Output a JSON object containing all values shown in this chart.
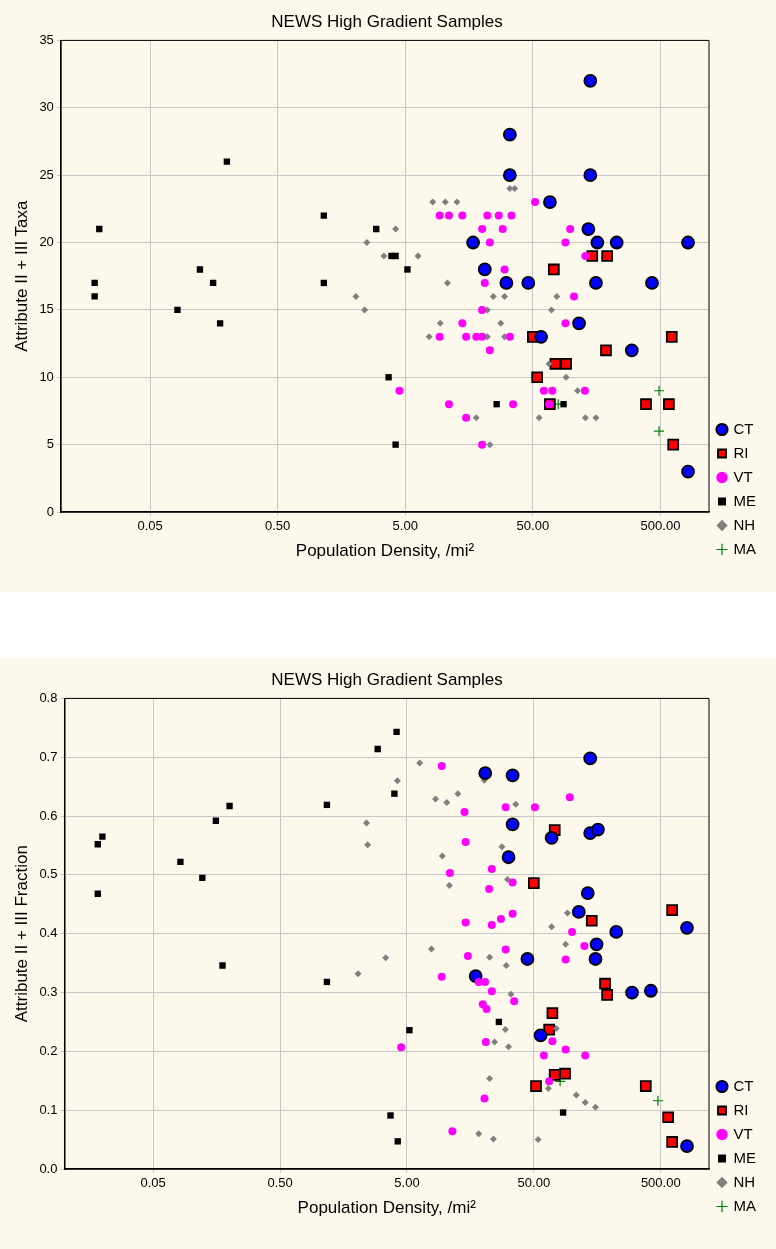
{
  "chart_data": [
    {
      "type": "scatter",
      "title": "NEWS High Gradient Samples",
      "xlabel": "Population Density, /mi²",
      "ylabel": "Attribute II + III Taxa",
      "log": "x",
      "grid": true,
      "legend": "bottom right",
      "xlim": [
        0.01,
        1200
      ],
      "xticks": [
        {
          "value": 0.05,
          "label": "0.05"
        },
        {
          "value": 0.5,
          "label": "0.50"
        },
        {
          "value": 5,
          "label": "5.00"
        },
        {
          "value": 50,
          "label": "50.00"
        },
        {
          "value": 500,
          "label": "500.00"
        }
      ],
      "ylim": [
        0,
        35
      ],
      "yticks": [
        0,
        5,
        10,
        15,
        20,
        25,
        30,
        35
      ],
      "series": [
        {
          "name": "CT",
          "color": "#0000ff",
          "marker": "circle",
          "x": [
            33,
            33,
            17,
            21,
            31,
            46,
            141,
            141,
            68,
            136,
            160,
            227,
            822,
            156,
            429,
            115,
            58,
            298,
            822
          ],
          "values": [
            28,
            25,
            20,
            18,
            17,
            17,
            32,
            25,
            23,
            21,
            20,
            20,
            20,
            17,
            17,
            14,
            13,
            12,
            3
          ]
        },
        {
          "name": "RI",
          "color": "#ff0000",
          "marker": "square",
          "x": [
            146,
            191,
            73,
            50,
            187,
            613,
            75,
            91,
            54,
            68,
            385,
            582,
            629
          ],
          "values": [
            19,
            19,
            18,
            13,
            12,
            13,
            11,
            11,
            10,
            8,
            8,
            8,
            5
          ]
        },
        {
          "name": "VT",
          "color": "#ff00ff",
          "marker": "circle",
          "x": [
            52,
            9.3,
            11,
            14,
            22,
            27,
            34,
            20,
            29,
            23,
            30,
            21,
            20,
            14,
            9.3,
            15,
            18,
            20,
            33,
            23,
            4.5,
            11,
            35,
            15,
            20,
            98,
            90,
            129,
            105,
            90,
            61,
            71,
            128,
            67
          ],
          "values": [
            23,
            22,
            22,
            22,
            22,
            22,
            22,
            21,
            21,
            20,
            18,
            17,
            15,
            14,
            13,
            13,
            13,
            13,
            13,
            12,
            9,
            8,
            8,
            7,
            5,
            21,
            20,
            19,
            16,
            14,
            9,
            9,
            9,
            8
          ]
        },
        {
          "name": "ME",
          "color": "#000000",
          "marker": "square",
          "x": [
            0.2,
            0.02,
            1.15,
            0.123,
            0.0184,
            0.0184,
            0.156,
            1.15,
            0.082,
            0.177,
            2.96,
            3.9,
            4.2,
            5.2,
            3.7,
            26,
            4.2,
            87
          ],
          "values": [
            26,
            21,
            22,
            18,
            17,
            16,
            17,
            17,
            15,
            14,
            21,
            19,
            19,
            18,
            10,
            8,
            5,
            8
          ]
        },
        {
          "name": "NH",
          "color": "#808080",
          "marker": "diamond",
          "x": [
            33,
            36,
            8.2,
            10.3,
            12.7,
            4.2,
            2.5,
            3.4,
            6.3,
            10.7,
            2.05,
            24.5,
            30,
            2.4,
            22,
            9.4,
            28,
            7.7,
            22,
            30,
            18,
            23,
            77,
            70,
            67,
            91,
            112,
            56,
            129,
            156
          ],
          "values": [
            24,
            24,
            23,
            23,
            23,
            21,
            20,
            19,
            19,
            17,
            16,
            16,
            16,
            15,
            15,
            14,
            14,
            13,
            13,
            13,
            7,
            5,
            16,
            15,
            11,
            10,
            9,
            7,
            7,
            7
          ]
        },
        {
          "name": "MA",
          "color": "#008000",
          "marker": "cross",
          "x": [
            487,
            487,
            79
          ],
          "values": [
            9,
            6,
            8
          ]
        }
      ]
    },
    {
      "type": "scatter",
      "title": "NEWS High Gradient Samples",
      "xlabel": "Population Density, /mi²",
      "ylabel": "Attribute II + III Fraction",
      "log": "x",
      "grid": true,
      "legend": "bottom right",
      "xlim": [
        0.01,
        1200
      ],
      "xticks": [
        {
          "value": 0.05,
          "label": "0.05"
        },
        {
          "value": 0.5,
          "label": "0.50"
        },
        {
          "value": 5,
          "label": "5.00"
        },
        {
          "value": 50,
          "label": "50.00"
        },
        {
          "value": 500,
          "label": "500.00"
        }
      ],
      "ylim": [
        0,
        0.8
      ],
      "yticks": [
        {
          "value": 0,
          "label": "0.0"
        },
        {
          "value": 0.1,
          "label": "0.1"
        },
        {
          "value": 0.2,
          "label": "0.2"
        },
        {
          "value": 0.3,
          "label": "0.3"
        },
        {
          "value": 0.4,
          "label": "0.4"
        },
        {
          "value": 0.5,
          "label": "0.5"
        },
        {
          "value": 0.6,
          "label": "0.6"
        },
        {
          "value": 0.7,
          "label": "0.7"
        },
        {
          "value": 0.8,
          "label": "0.8"
        }
      ],
      "series": [
        {
          "name": "CT",
          "color": "#0000ff",
          "marker": "circle",
          "x": [
            20.7,
            34,
            34,
            31.6,
            17.4,
            139,
            69,
            139,
            160,
            133,
            113,
            223,
            805,
            156,
            44.5,
            153,
            297,
            418,
            56.5,
            805
          ],
          "values": [
            0.673,
            0.669,
            0.586,
            0.53,
            0.328,
            0.698,
            0.563,
            0.571,
            0.577,
            0.469,
            0.437,
            0.403,
            0.41,
            0.382,
            0.357,
            0.357,
            0.3,
            0.303,
            0.227,
            0.039
          ]
        },
        {
          "name": "RI",
          "color": "#ff0000",
          "marker": "square",
          "x": [
            73,
            50,
            615,
            143,
            182,
            189,
            70,
            66,
            73,
            88,
            52,
            381,
            572,
            615
          ],
          "values": [
            0.576,
            0.486,
            0.44,
            0.422,
            0.315,
            0.296,
            0.265,
            0.237,
            0.16,
            0.162,
            0.141,
            0.141,
            0.088,
            0.046
          ]
        },
        {
          "name": "VT",
          "color": "#ff00ff",
          "marker": "circle",
          "x": [
            9.4,
            30,
            51,
            14.2,
            14.5,
            23.3,
            10.9,
            34,
            22.2,
            14.5,
            23.3,
            27.5,
            34,
            30,
            15.1,
            9.4,
            18.4,
            20.6,
            23.3,
            19.8,
            21.2,
            35,
            4.5,
            20.9,
            20.4,
            11.4,
            96,
            100,
            125,
            89,
            70,
            89,
            60,
            127,
            66
          ],
          "values": [
            0.685,
            0.615,
            0.615,
            0.607,
            0.556,
            0.51,
            0.503,
            0.487,
            0.476,
            0.419,
            0.415,
            0.425,
            0.434,
            0.373,
            0.362,
            0.327,
            0.318,
            0.318,
            0.302,
            0.28,
            0.272,
            0.285,
            0.207,
            0.216,
            0.12,
            0.064,
            0.632,
            0.403,
            0.379,
            0.356,
            0.217,
            0.203,
            0.193,
            0.193,
            0.149
          ]
        },
        {
          "name": "ME",
          "color": "#000000",
          "marker": "square",
          "x": [
            0.2,
            0.156,
            0.0199,
            0.0183,
            0.082,
            0.122,
            0.0183,
            1.17,
            0.176,
            1.17,
            4.14,
            2.94,
            3.98,
            5.23,
            26.5,
            3.71,
            4.23,
            85
          ],
          "values": [
            0.617,
            0.592,
            0.565,
            0.552,
            0.522,
            0.495,
            0.468,
            0.619,
            0.346,
            0.318,
            0.743,
            0.714,
            0.638,
            0.236,
            0.25,
            0.091,
            0.047,
            0.096
          ]
        },
        {
          "name": "NH",
          "color": "#808080",
          "marker": "diamond",
          "x": [
            6.3,
            4.2,
            8.4,
            10.3,
            12.6,
            20.3,
            36,
            2.4,
            2.45,
            9.5,
            28,
            31,
            10.8,
            7.8,
            3.4,
            2.06,
            22.4,
            30.3,
            33,
            29.8,
            24.5,
            31.6,
            22.4,
            18.4,
            24,
            92,
            69,
            89,
            75,
            65,
            108,
            127,
            153,
            54
          ],
          "values": [
            0.69,
            0.66,
            0.629,
            0.623,
            0.638,
            0.661,
            0.62,
            0.588,
            0.551,
            0.532,
            0.548,
            0.492,
            0.482,
            0.374,
            0.359,
            0.332,
            0.36,
            0.346,
            0.297,
            0.237,
            0.216,
            0.208,
            0.154,
            0.06,
            0.051,
            0.435,
            0.412,
            0.382,
            0.239,
            0.137,
            0.126,
            0.113,
            0.105,
            0.05
          ]
        },
        {
          "name": "MA",
          "color": "#008000",
          "marker": "cross",
          "x": [
            80.5,
            475
          ],
          "values": [
            0.149,
            0.116
          ]
        }
      ]
    }
  ]
}
